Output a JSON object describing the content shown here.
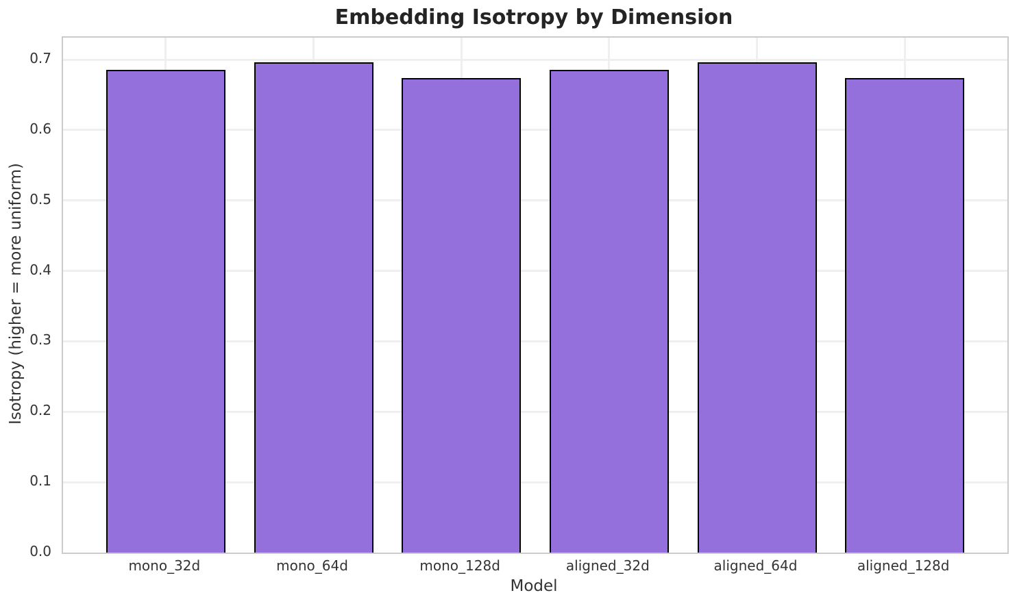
{
  "chart_data": {
    "type": "bar",
    "title": "Embedding Isotropy by Dimension",
    "xlabel": "Model",
    "ylabel": "Isotropy (higher = more uniform)",
    "categories": [
      "mono_32d",
      "mono_64d",
      "mono_128d",
      "aligned_32d",
      "aligned_64d",
      "aligned_128d"
    ],
    "values": [
      0.686,
      0.696,
      0.674,
      0.686,
      0.696,
      0.674
    ],
    "ytick_labels": [
      "0.0",
      "0.1",
      "0.2",
      "0.3",
      "0.4",
      "0.5",
      "0.6",
      "0.7"
    ],
    "ylim": [
      0,
      0.7312
    ],
    "grid": true,
    "legend_position": "none",
    "colors": {
      "bar_fill": "#9370DB",
      "bar_edge": "#000000",
      "grid": "#efefef",
      "spine": "#cbcbcb",
      "title_text": "#242424",
      "tick_text": "#333333"
    }
  }
}
